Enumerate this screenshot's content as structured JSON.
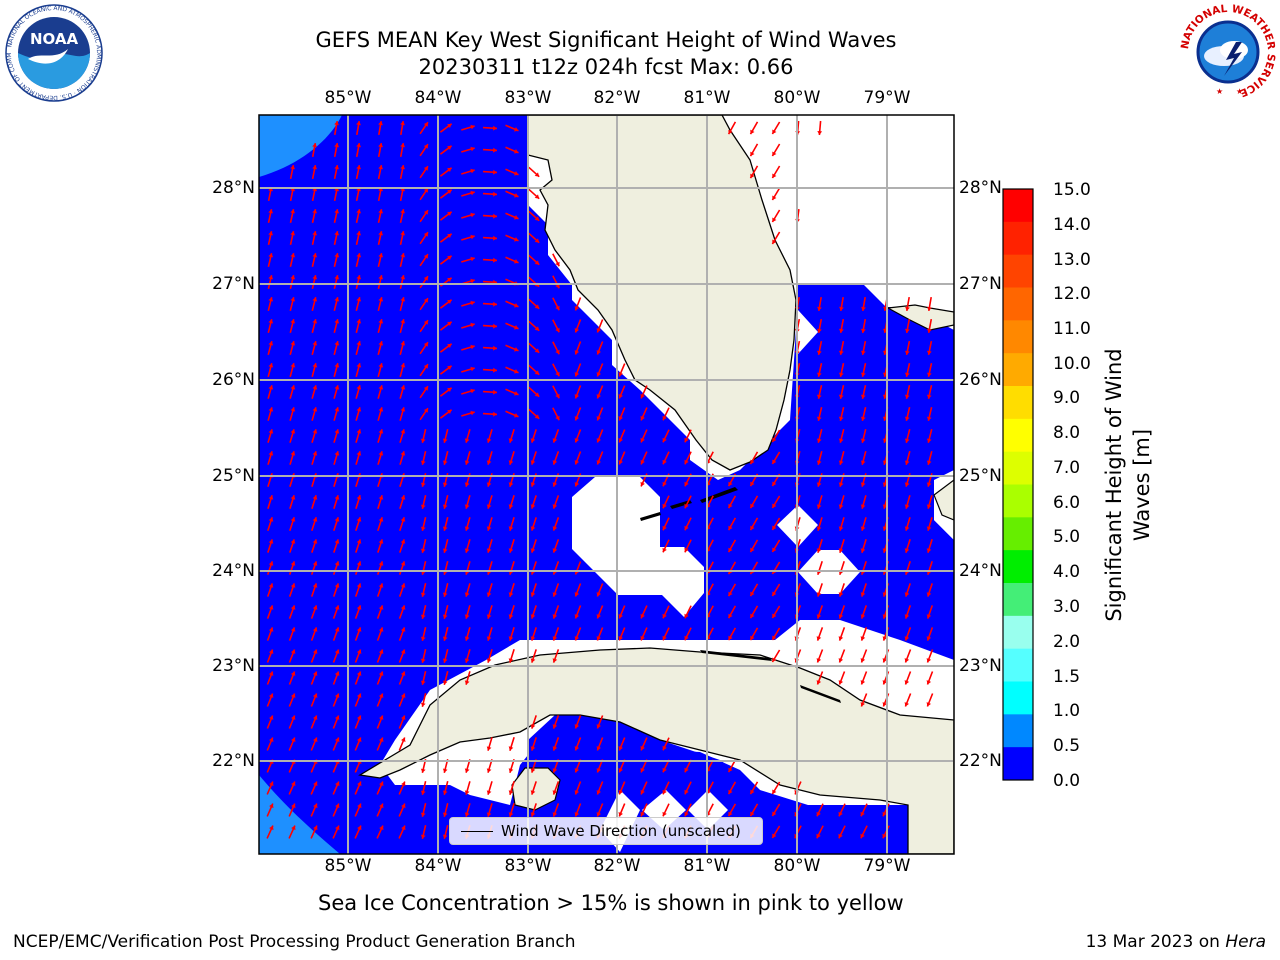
{
  "title_line1": "GEFS MEAN Key West Significant Height of Wind Waves",
  "title_line2": "20230311 t12z 024h fcst   Max: 0.66",
  "lon_ticks": [
    "85°W",
    "84°W",
    "83°W",
    "82°W",
    "81°W",
    "80°W",
    "79°W"
  ],
  "lat_ticks": [
    "28°N",
    "27°N",
    "26°N",
    "25°N",
    "24°N",
    "23°N",
    "22°N"
  ],
  "legend_label": "Wind Wave Direction (unscaled)",
  "colorbar": {
    "label": "Significant Height of Wind Waves [m]",
    "label_lines": [
      "Significant Height of Wind",
      "Waves [m]"
    ],
    "ticks": [
      "15.0",
      "14.0",
      "13.0",
      "12.0",
      "11.0",
      "10.0",
      "9.0",
      "8.0",
      "7.0",
      "6.0",
      "5.0",
      "4.0",
      "3.0",
      "2.0",
      "1.5",
      "1.0",
      "0.5",
      "0.0"
    ],
    "colors": [
      "#ff0000",
      "#ff2200",
      "#ff4400",
      "#ff6600",
      "#ff8800",
      "#ffaa00",
      "#ffdd00",
      "#ffff00",
      "#ddff00",
      "#aaff00",
      "#66ee00",
      "#00ee00",
      "#44ee77",
      "#99ffee",
      "#55ffff",
      "#00ffff",
      "#0088ff",
      "#0000ff"
    ]
  },
  "colors": {
    "water": "#0000ff",
    "water_light": "#1e90ff",
    "land": "#efefdf",
    "arrows": "#ff0000",
    "grid": "#b0b0b0"
  },
  "ice_note": "Sea Ice Concentration > 15% is shown in pink to yellow",
  "footer_left": "NCEP/EMC/Verification Post Processing Product Generation Branch",
  "footer_right_date": "13 Mar 2023 on",
  "footer_right_machine": "Hera",
  "logos": {
    "left": {
      "text": "NOAA",
      "ring_text": "NATIONAL OCEANIC AND ATMOSPHERIC ADMINISTRATION · U.S. DEPARTMENT OF COMMERCE"
    },
    "right": {
      "ring_text": "NATIONAL WEATHER SERVICE"
    }
  }
}
